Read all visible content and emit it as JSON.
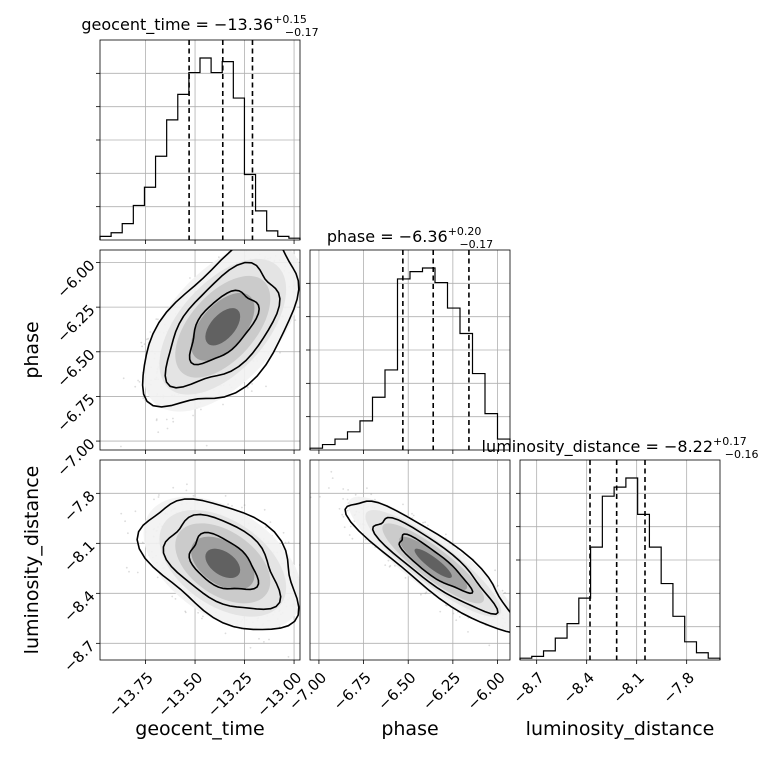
{
  "chart_data": {
    "type": "corner",
    "parameters": [
      "geocent_time",
      "phase",
      "luminosity_distance"
    ],
    "titles": [
      {
        "param": "geocent_time",
        "prefix": "geocent_time = −13.36",
        "upper": "+0.15",
        "lower": "−0.17"
      },
      {
        "param": "phase",
        "prefix": "phase = −6.36",
        "upper": "+0.20",
        "lower": "−0.17"
      },
      {
        "param": "luminosity_distance",
        "prefix": "luminosity_distance = −8.22",
        "upper": "+0.17",
        "lower": "−0.16"
      }
    ],
    "ranges": {
      "geocent_time": [
        -13.98,
        -12.97
      ],
      "phase": [
        -7.05,
        -5.93
      ],
      "luminosity_distance": [
        -8.8,
        -7.6
      ]
    },
    "ticks": {
      "geocent_time": [
        {
          "value": -13.75,
          "label": "−13.75"
        },
        {
          "value": -13.5,
          "label": "−13.50"
        },
        {
          "value": -13.25,
          "label": "−13.25"
        },
        {
          "value": -13.0,
          "label": "−13.00"
        }
      ],
      "phase": [
        {
          "value": -7.0,
          "label": "−7.00"
        },
        {
          "value": -6.75,
          "label": "−6.75"
        },
        {
          "value": -6.5,
          "label": "−6.50"
        },
        {
          "value": -6.25,
          "label": "−6.25"
        },
        {
          "value": -6.0,
          "label": "−6.00"
        }
      ],
      "luminosity_distance": [
        {
          "value": -8.7,
          "label": "−8.7"
        },
        {
          "value": -8.4,
          "label": "−8.4"
        },
        {
          "value": -8.1,
          "label": "−8.1"
        },
        {
          "value": -7.8,
          "label": "−7.8"
        }
      ]
    },
    "quantiles": {
      "geocent_time": [
        -13.53,
        -13.36,
        -13.21
      ],
      "phase": [
        -6.53,
        -6.36,
        -6.16
      ],
      "luminosity_distance": [
        -8.38,
        -8.22,
        -8.05
      ]
    },
    "histograms": {
      "geocent_time": [
        0.02,
        0.04,
        0.09,
        0.19,
        0.29,
        0.46,
        0.66,
        0.8,
        0.92,
        1.0,
        0.92,
        0.98,
        0.78,
        0.36,
        0.16,
        0.05,
        0.02,
        0.01
      ],
      "phase": [
        0.01,
        0.03,
        0.06,
        0.1,
        0.16,
        0.29,
        0.44,
        0.94,
        0.98,
        1.0,
        0.92,
        0.78,
        0.64,
        0.42,
        0.2,
        0.06
      ],
      "luminosity_distance": [
        0.01,
        0.02,
        0.05,
        0.12,
        0.2,
        0.34,
        0.62,
        0.9,
        0.95,
        1.0,
        0.8,
        0.62,
        0.42,
        0.24,
        0.1,
        0.04,
        0.01
      ]
    },
    "grid": true
  }
}
